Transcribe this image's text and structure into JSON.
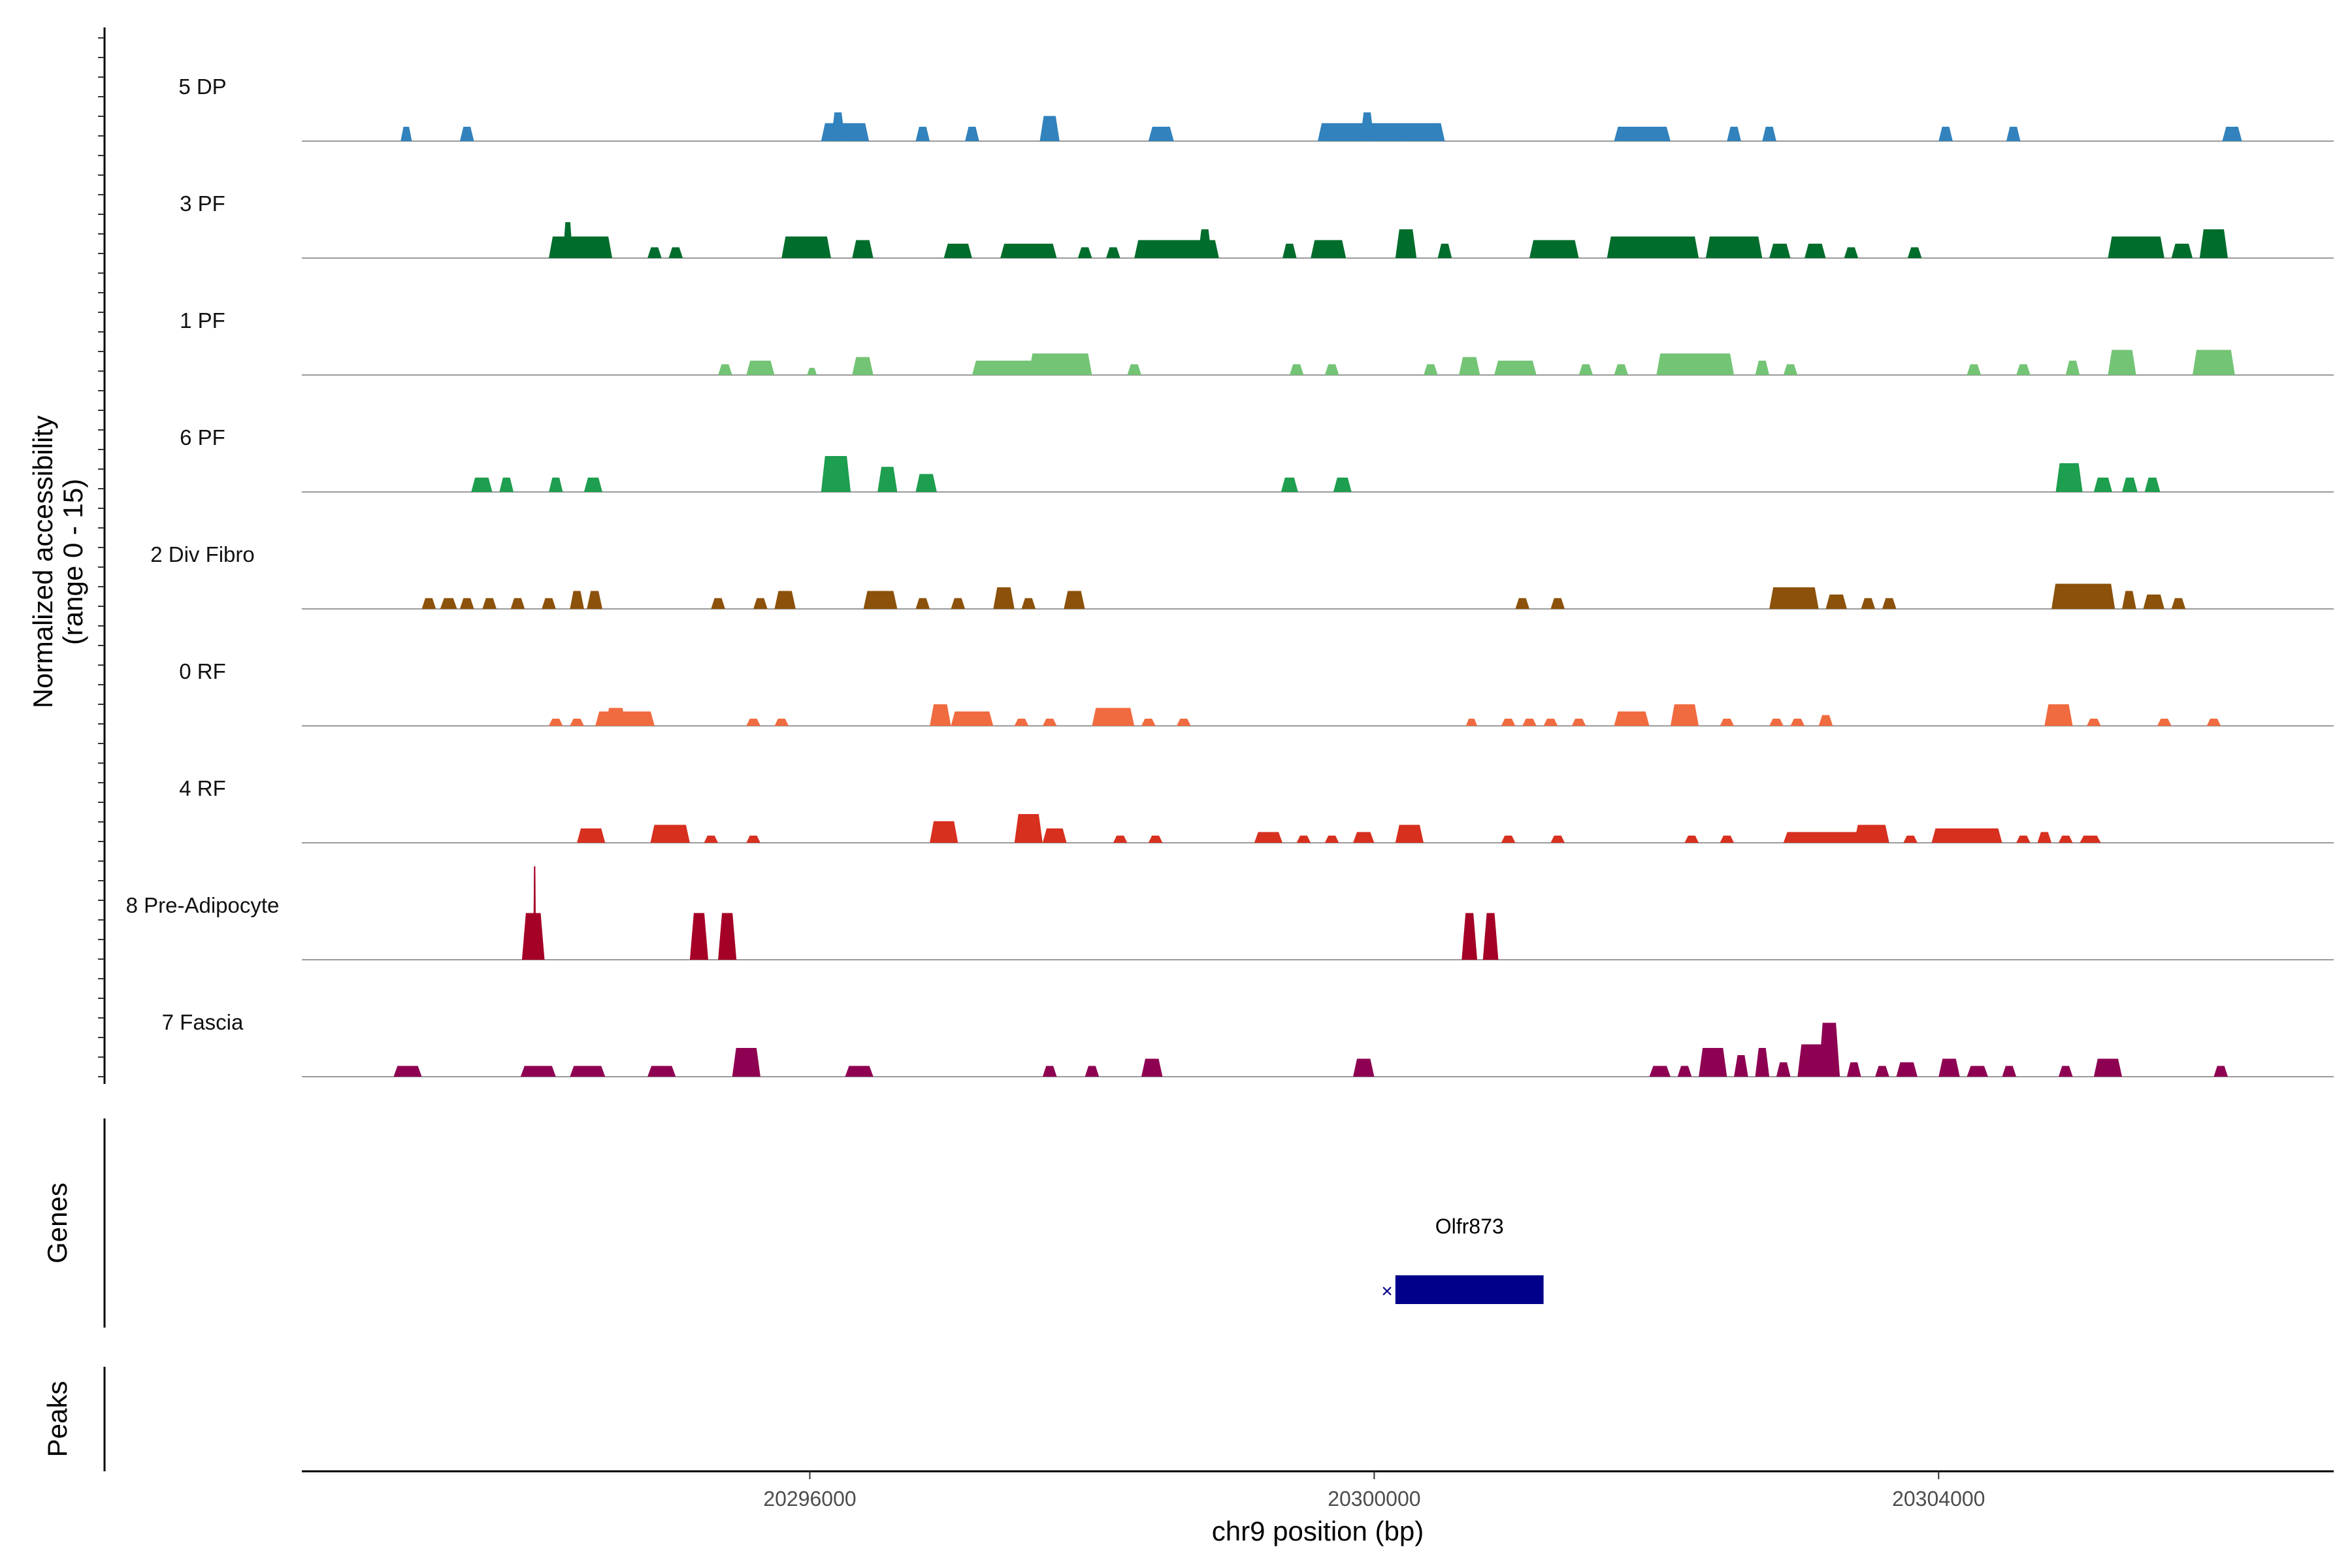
{
  "chart_data": {
    "type": "area",
    "title": "",
    "ylabel_line1": "Normalized accessibility",
    "ylabel_line2": "(range 0 - 15)",
    "xlabel": "chr9 position (bp)",
    "xlim": [
      20292400,
      20306800
    ],
    "ylim": [
      0,
      15
    ],
    "x_ticks": [
      20296000,
      20300000,
      20304000
    ],
    "x_tick_labels": [
      "20296000",
      "20300000",
      "20304000"
    ],
    "grid": false,
    "tracks": [
      {
        "name": "5 DP",
        "color": "#3182bd",
        "peaks": [
          [
            20293100,
            20293180,
            2
          ],
          [
            20293520,
            20293620,
            2
          ],
          [
            20296080,
            20296420,
            2.5
          ],
          [
            20296150,
            20296250,
            4
          ],
          [
            20296750,
            20296850,
            2
          ],
          [
            20297100,
            20297200,
            2
          ],
          [
            20297630,
            20297770,
            3.5
          ],
          [
            20298400,
            20298580,
            2
          ],
          [
            20299600,
            20300500,
            2.5
          ],
          [
            20299900,
            20300000,
            4
          ],
          [
            20300200,
            20300500,
            2
          ],
          [
            20301700,
            20302100,
            2
          ],
          [
            20302500,
            20302600,
            2
          ],
          [
            20302750,
            20302850,
            2
          ],
          [
            20304000,
            20304100,
            2
          ],
          [
            20304480,
            20304580,
            2
          ],
          [
            20306010,
            20306150,
            2
          ]
        ]
      },
      {
        "name": "3 PF",
        "color": "#006d2c",
        "peaks": [
          [
            20294150,
            20294600,
            3
          ],
          [
            20294250,
            20294320,
            5
          ],
          [
            20294850,
            20294950,
            1.5
          ],
          [
            20295000,
            20295100,
            1.5
          ],
          [
            20295800,
            20296150,
            3
          ],
          [
            20296300,
            20296450,
            2.5
          ],
          [
            20296950,
            20297150,
            2
          ],
          [
            20297350,
            20297750,
            2
          ],
          [
            20297900,
            20298000,
            1.5
          ],
          [
            20298100,
            20298200,
            1.5
          ],
          [
            20298300,
            20298900,
            2.5
          ],
          [
            20298750,
            20298850,
            4
          ],
          [
            20299350,
            20299450,
            2
          ],
          [
            20299550,
            20299800,
            2.5
          ],
          [
            20300150,
            20300300,
            4
          ],
          [
            20300450,
            20300550,
            2
          ],
          [
            20301100,
            20301450,
            2.5
          ],
          [
            20301650,
            20302300,
            3
          ],
          [
            20302350,
            20302750,
            3
          ],
          [
            20302800,
            20302950,
            2
          ],
          [
            20303050,
            20303200,
            2
          ],
          [
            20303330,
            20303430,
            1.5
          ],
          [
            20303780,
            20303880,
            1.5
          ],
          [
            20305200,
            20305600,
            3
          ],
          [
            20305650,
            20305800,
            2
          ],
          [
            20305850,
            20306050,
            4
          ]
        ]
      },
      {
        "name": "1 PF",
        "color": "#74c476",
        "peaks": [
          [
            20295350,
            20295450,
            1.5
          ],
          [
            20295550,
            20295750,
            2
          ],
          [
            20295980,
            20296050,
            1
          ],
          [
            20296300,
            20296450,
            2.5
          ],
          [
            20297150,
            20297650,
            2
          ],
          [
            20297550,
            20298000,
            3
          ],
          [
            20298250,
            20298350,
            1.5
          ],
          [
            20299400,
            20299500,
            1.5
          ],
          [
            20299650,
            20299750,
            1.5
          ],
          [
            20300350,
            20300450,
            1.5
          ],
          [
            20300600,
            20300750,
            2.5
          ],
          [
            20300850,
            20301150,
            2
          ],
          [
            20301450,
            20301550,
            1.5
          ],
          [
            20301700,
            20301800,
            1.5
          ],
          [
            20302000,
            20302550,
            3
          ],
          [
            20302700,
            20302800,
            2
          ],
          [
            20302900,
            20303000,
            1.5
          ],
          [
            20304200,
            20304300,
            1.5
          ],
          [
            20304550,
            20304650,
            1.5
          ],
          [
            20304900,
            20305000,
            2
          ],
          [
            20305200,
            20305400,
            3.5
          ],
          [
            20305800,
            20306100,
            3.5
          ]
        ]
      },
      {
        "name": "6 PF",
        "color": "#1e9e4f",
        "peaks": [
          [
            20293600,
            20293750,
            2
          ],
          [
            20293800,
            20293900,
            2
          ],
          [
            20294150,
            20294250,
            2
          ],
          [
            20294400,
            20294530,
            2
          ],
          [
            20296080,
            20296290,
            5
          ],
          [
            20296480,
            20296620,
            3.5
          ],
          [
            20296750,
            20296900,
            2.5
          ],
          [
            20299340,
            20299460,
            2
          ],
          [
            20299710,
            20299840,
            2
          ],
          [
            20304830,
            20305020,
            4
          ],
          [
            20305100,
            20305230,
            2
          ],
          [
            20305300,
            20305410,
            2
          ],
          [
            20305460,
            20305570,
            2
          ]
        ]
      },
      {
        "name": "2 Div Fibro",
        "color": "#8c510a",
        "peaks": [
          [
            20293250,
            20293350,
            1.5
          ],
          [
            20293380,
            20293500,
            1.5
          ],
          [
            20293520,
            20293620,
            1.5
          ],
          [
            20293680,
            20293780,
            1.5
          ],
          [
            20293880,
            20293980,
            1.5
          ],
          [
            20294100,
            20294200,
            1.5
          ],
          [
            20294300,
            20294400,
            2.5
          ],
          [
            20294420,
            20294530,
            2.5
          ],
          [
            20295300,
            20295400,
            1.5
          ],
          [
            20295600,
            20295700,
            1.5
          ],
          [
            20295750,
            20295900,
            2.5
          ],
          [
            20296380,
            20296620,
            2.5
          ],
          [
            20296750,
            20296850,
            1.5
          ],
          [
            20297000,
            20297100,
            1.5
          ],
          [
            20297300,
            20297450,
            3
          ],
          [
            20297500,
            20297600,
            1.5
          ],
          [
            20297800,
            20297950,
            2.5
          ],
          [
            20301000,
            20301100,
            1.5
          ],
          [
            20301250,
            20301350,
            1.5
          ],
          [
            20302800,
            20303150,
            3
          ],
          [
            20303200,
            20303350,
            2
          ],
          [
            20303450,
            20303550,
            1.5
          ],
          [
            20303600,
            20303700,
            1.5
          ],
          [
            20304800,
            20305250,
            3.5
          ],
          [
            20305300,
            20305400,
            2.5
          ],
          [
            20305450,
            20305600,
            2
          ],
          [
            20305650,
            20305750,
            1.5
          ]
        ]
      },
      {
        "name": "0 RF",
        "color": "#f16b40",
        "peaks": [
          [
            20294150,
            20294250,
            1
          ],
          [
            20294300,
            20294400,
            1
          ],
          [
            20294480,
            20294900,
            2
          ],
          [
            20294550,
            20294700,
            2.5
          ],
          [
            20295550,
            20295650,
            1
          ],
          [
            20295750,
            20295850,
            1
          ],
          [
            20296850,
            20297000,
            3
          ],
          [
            20297000,
            20297300,
            2
          ],
          [
            20297450,
            20297550,
            1
          ],
          [
            20297650,
            20297750,
            1
          ],
          [
            20298000,
            20298300,
            2.5
          ],
          [
            20298350,
            20298450,
            1
          ],
          [
            20298600,
            20298700,
            1
          ],
          [
            20300650,
            20300730,
            1
          ],
          [
            20300900,
            20301000,
            1
          ],
          [
            20301050,
            20301150,
            1
          ],
          [
            20301200,
            20301300,
            1
          ],
          [
            20301400,
            20301500,
            1
          ],
          [
            20301700,
            20301950,
            2
          ],
          [
            20302100,
            20302300,
            3
          ],
          [
            20302450,
            20302550,
            1
          ],
          [
            20302800,
            20302900,
            1
          ],
          [
            20302950,
            20303050,
            1
          ],
          [
            20303150,
            20303250,
            1.5
          ],
          [
            20304750,
            20304950,
            3
          ],
          [
            20305050,
            20305150,
            1
          ],
          [
            20305550,
            20305650,
            1
          ],
          [
            20305900,
            20306000,
            1
          ]
        ]
      },
      {
        "name": "4 RF",
        "color": "#d7301f",
        "peaks": [
          [
            20294350,
            20294550,
            2
          ],
          [
            20294870,
            20295150,
            2.5
          ],
          [
            20295250,
            20295350,
            1
          ],
          [
            20295550,
            20295650,
            1
          ],
          [
            20296850,
            20297050,
            3
          ],
          [
            20297450,
            20297650,
            4
          ],
          [
            20297650,
            20297820,
            2
          ],
          [
            20298150,
            20298250,
            1
          ],
          [
            20298400,
            20298500,
            1
          ],
          [
            20299150,
            20299350,
            1.5
          ],
          [
            20299450,
            20299550,
            1
          ],
          [
            20299650,
            20299750,
            1
          ],
          [
            20299850,
            20300000,
            1.5
          ],
          [
            20300150,
            20300350,
            2.5
          ],
          [
            20300900,
            20301000,
            1
          ],
          [
            20301250,
            20301350,
            1
          ],
          [
            20302200,
            20302300,
            1
          ],
          [
            20302450,
            20302550,
            1
          ],
          [
            20302900,
            20303500,
            1.5
          ],
          [
            20303400,
            20303650,
            2.5
          ],
          [
            20303750,
            20303850,
            1
          ],
          [
            20303950,
            20304450,
            2
          ],
          [
            20304550,
            20304650,
            1
          ],
          [
            20304700,
            20304800,
            1.5
          ],
          [
            20304850,
            20304950,
            1
          ],
          [
            20305000,
            20305150,
            1
          ]
        ]
      },
      {
        "name": "8 Pre-Adipocyte",
        "color": "#a50026",
        "peaks": [
          [
            20293960,
            20294120,
            6.5
          ],
          [
            20294040,
            20294060,
            13
          ],
          [
            20295150,
            20295280,
            6.5
          ],
          [
            20295350,
            20295480,
            6.5
          ],
          [
            20300620,
            20300730,
            6.5
          ],
          [
            20300770,
            20300880,
            6.5
          ]
        ]
      },
      {
        "name": "7 Fascia",
        "color": "#8e0152",
        "peaks": [
          [
            20293050,
            20293250,
            1.5
          ],
          [
            20293950,
            20294200,
            1.5
          ],
          [
            20294300,
            20294550,
            1.5
          ],
          [
            20294850,
            20295050,
            1.5
          ],
          [
            20295450,
            20295650,
            4
          ],
          [
            20296250,
            20296450,
            1.5
          ],
          [
            20297650,
            20297750,
            1.5
          ],
          [
            20297950,
            20298050,
            1.5
          ],
          [
            20298350,
            20298500,
            2.5
          ],
          [
            20299850,
            20300000,
            2.5
          ],
          [
            20301950,
            20302100,
            1.5
          ],
          [
            20302150,
            20302250,
            1.5
          ],
          [
            20302300,
            20302500,
            4
          ],
          [
            20302550,
            20302650,
            3
          ],
          [
            20302700,
            20302800,
            4
          ],
          [
            20302850,
            20302950,
            2
          ],
          [
            20303000,
            20303300,
            4.5
          ],
          [
            20303150,
            20303300,
            7.5
          ],
          [
            20303350,
            20303450,
            2
          ],
          [
            20303550,
            20303650,
            1.5
          ],
          [
            20303700,
            20303850,
            2
          ],
          [
            20304000,
            20304150,
            2.5
          ],
          [
            20304200,
            20304350,
            1.5
          ],
          [
            20304450,
            20304550,
            1.5
          ],
          [
            20304850,
            20304950,
            1.5
          ],
          [
            20305100,
            20305300,
            2.5
          ],
          [
            20305950,
            20306050,
            1.5
          ]
        ]
      }
    ],
    "genes": [
      {
        "name": "Olfr873",
        "start": 20300150,
        "end": 20301200,
        "strand": "-",
        "color": "#00008b"
      }
    ],
    "genes_panel_label": "Genes",
    "peaks_panel_label": "Peaks"
  }
}
